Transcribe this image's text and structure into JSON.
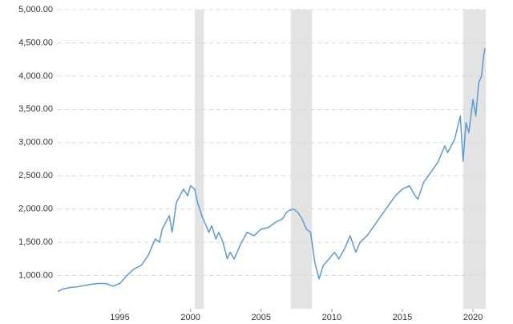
{
  "chart_data": {
    "type": "line",
    "x": [
      1990.6,
      1991,
      1991.5,
      1992,
      1992.5,
      1993,
      1993.5,
      1994,
      1994.5,
      1995,
      1995.5,
      1996,
      1996.5,
      1997,
      1997.5,
      1997.8,
      1998,
      1998.5,
      1998.7,
      1999,
      1999.5,
      1999.8,
      2000,
      2000.3,
      2000.5,
      2000.8,
      2001,
      2001.3,
      2001.5,
      2001.8,
      2002,
      2002.3,
      2002.6,
      2002.8,
      2003.1,
      2003.5,
      2004,
      2004.5,
      2005,
      2005.5,
      2006,
      2006.5,
      2006.8,
      2007,
      2007.3,
      2007.6,
      2007.9,
      2008.2,
      2008.5,
      2008.8,
      2009.1,
      2009.4,
      2009.8,
      2010.2,
      2010.5,
      2010.9,
      2011.3,
      2011.7,
      2012,
      2012.5,
      2013,
      2013.5,
      2014,
      2014.5,
      2015,
      2015.5,
      2015.9,
      2016.1,
      2016.5,
      2017,
      2017.5,
      2018,
      2018.2,
      2018.7,
      2019.1,
      2019.3,
      2019.5,
      2019.7,
      2020,
      2020.2,
      2020.4,
      2020.6,
      2020.75,
      2020.85
    ],
    "series": [
      {
        "color": "#5b9bd5",
        "values": [
          760,
          800,
          820,
          830,
          850,
          870,
          880,
          880,
          840,
          880,
          1000,
          1100,
          1150,
          1300,
          1550,
          1500,
          1700,
          1900,
          1650,
          2100,
          2300,
          2200,
          2350,
          2300,
          2100,
          1900,
          1800,
          1650,
          1750,
          1550,
          1650,
          1500,
          1250,
          1350,
          1250,
          1450,
          1650,
          1600,
          1700,
          1720,
          1800,
          1850,
          1950,
          1980,
          2000,
          1950,
          1850,
          1700,
          1650,
          1200,
          950,
          1150,
          1250,
          1350,
          1250,
          1400,
          1600,
          1350,
          1500,
          1600,
          1750,
          1900,
          2050,
          2200,
          2300,
          2350,
          2200,
          2150,
          2400,
          2550,
          2700,
          2950,
          2850,
          3050,
          3400,
          2720,
          3300,
          3150,
          3650,
          3400,
          3900,
          4000,
          4300,
          4420
        ]
      }
    ],
    "recessions": [
      [
        2000.3,
        2000.95
      ],
      [
        2007.1,
        2008.6
      ],
      [
        2019.3,
        2020.9
      ]
    ],
    "xlim": [
      1990.6,
      2020.9
    ],
    "xticks": [
      1995,
      2000,
      2005,
      2010,
      2015,
      2020
    ],
    "ylim": [
      500,
      5000
    ],
    "yticks": [
      {
        "value": 1000,
        "label": "1,000.00"
      },
      {
        "value": 1500,
        "label": "1,500.00"
      },
      {
        "value": 2000,
        "label": "2,000.00"
      },
      {
        "value": 2500,
        "label": "2,500.00"
      },
      {
        "value": 3000,
        "label": "3,000.00"
      },
      {
        "value": 3500,
        "label": "3,500.00"
      },
      {
        "value": 4000,
        "label": "4,000.00"
      },
      {
        "value": 4500,
        "label": "4,500.00"
      },
      {
        "value": 5000,
        "label": "5,000.00"
      }
    ],
    "grid": true
  }
}
